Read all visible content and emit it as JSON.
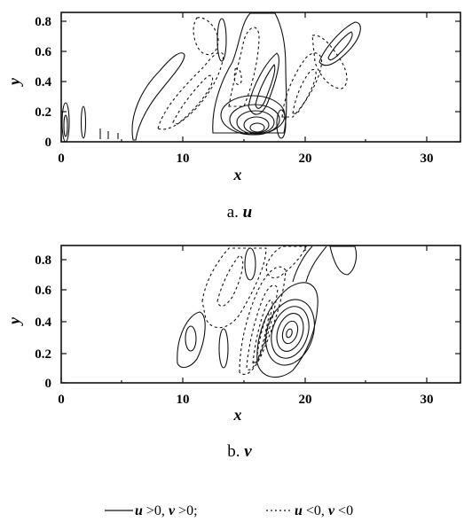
{
  "chart_data": [
    {
      "type": "contour",
      "panel_label": "a.",
      "variable": "u",
      "xlabel": "x",
      "ylabel": "y",
      "xlim": [
        0,
        33
      ],
      "ylim": [
        0,
        0.85
      ],
      "xticks": [
        "0",
        "10",
        "20",
        "30"
      ],
      "yticks": [
        "0",
        "0.2",
        "0.4",
        "0.6",
        "0.8"
      ],
      "contours": [
        {
          "sign": "positive",
          "description": "main core",
          "center": [
            16,
            0.12
          ]
        },
        {
          "sign": "positive",
          "description": "elongated ridge",
          "center": [
            17,
            0.5
          ]
        },
        {
          "sign": "positive",
          "description": "upper lobe",
          "center": [
            22,
            0.62
          ]
        },
        {
          "sign": "positive",
          "description": "weak tail",
          "center": [
            9,
            0.4
          ]
        },
        {
          "sign": "positive",
          "description": "inlet spots",
          "center": [
            0.5,
            0.15
          ]
        },
        {
          "sign": "negative",
          "description": "left lobe",
          "center": [
            13,
            0.55
          ]
        },
        {
          "sign": "negative",
          "description": "right lobe",
          "center": [
            19.5,
            0.4
          ]
        }
      ]
    },
    {
      "type": "contour",
      "panel_label": "b.",
      "variable": "v",
      "xlabel": "x",
      "ylabel": "y",
      "xlim": [
        0,
        33
      ],
      "ylim": [
        0,
        0.85
      ],
      "xticks": [
        "0",
        "10",
        "20",
        "30"
      ],
      "yticks": [
        "0",
        "0.2",
        "0.4",
        "0.6",
        "0.8"
      ],
      "contours": [
        {
          "sign": "positive",
          "description": "main core",
          "center": [
            18.5,
            0.32
          ]
        },
        {
          "sign": "positive",
          "description": "left lobe",
          "center": [
            10.5,
            0.28
          ]
        },
        {
          "sign": "positive",
          "description": "upper right",
          "center": [
            23.5,
            0.78
          ]
        },
        {
          "sign": "negative",
          "description": "dense band",
          "center": [
            16,
            0.35
          ]
        },
        {
          "sign": "negative",
          "description": "upper region",
          "center": [
            14,
            0.62
          ]
        }
      ]
    }
  ],
  "captions": {
    "a_prefix": "a.",
    "a_var": "u",
    "b_prefix": "b.",
    "b_var": "v"
  },
  "legend": {
    "solid_text_u": "u",
    "solid_text_mid": " >0,  ",
    "solid_text_v": "v",
    "solid_text_end": " >0;",
    "dotted_text_u": "u",
    "dotted_text_mid": " <0,  ",
    "dotted_text_v": "v",
    "dotted_text_end": " <0"
  },
  "colors": {
    "ink": "#111111",
    "background": "#ffffff"
  }
}
